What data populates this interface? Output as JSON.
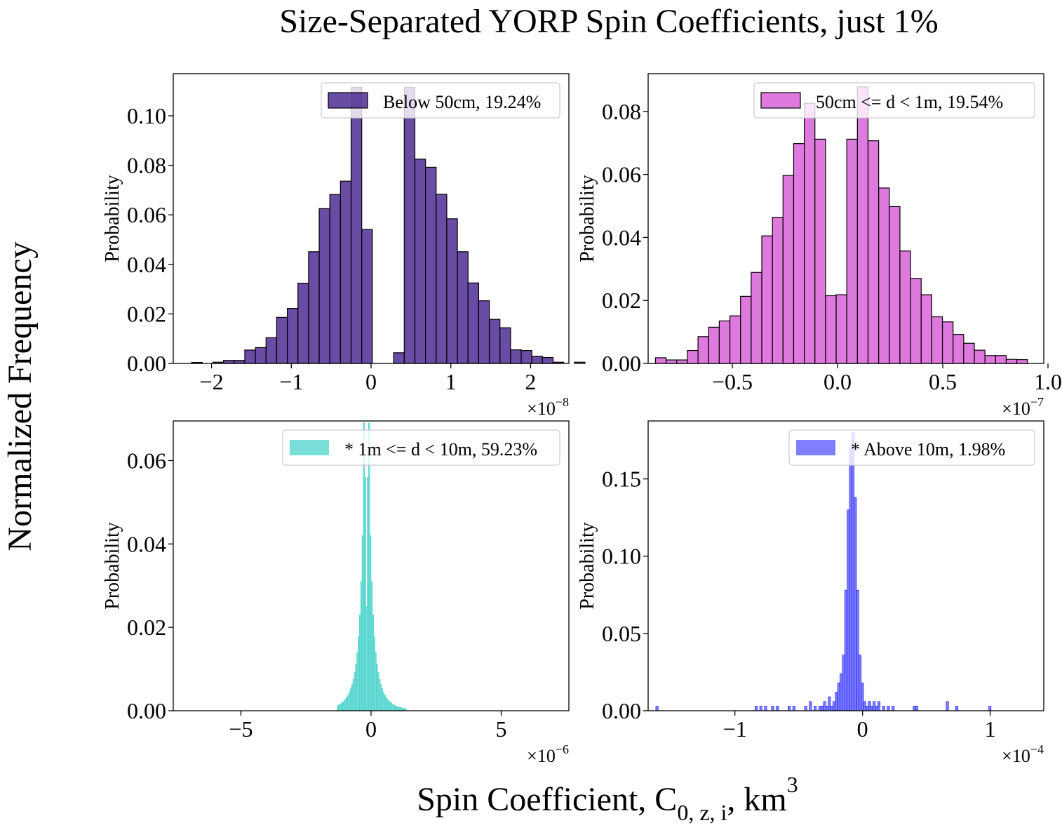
{
  "figure": {
    "title": "Size-Separated YORP Spin Coefficients, just 1%",
    "supylabel": "Normalized Frequency",
    "supxlabel_main": "Spin Coefficient, C",
    "supxlabel_sub": "0, z, i",
    "supxlabel_tail": ", km",
    "supxlabel_sup": "3"
  },
  "chart_data": [
    {
      "type": "bar",
      "legend": "Below 50cm, 19.24%",
      "ylabel": "Probability",
      "color": "#3f1a8a",
      "alpha": 0.78,
      "edge": true,
      "xlim": [
        -2.48,
        2.48
      ],
      "ylim": [
        0,
        0.117
      ],
      "xticks": [
        -2,
        -1,
        0,
        1,
        2
      ],
      "xticklabels": [
        "−2",
        "−1",
        "0",
        "1",
        "2"
      ],
      "yticks": [
        0,
        0.02,
        0.04,
        0.06,
        0.08,
        0.1
      ],
      "yticklabels": [
        "0.00",
        "0.02",
        "0.04",
        "0.06",
        "0.08",
        "0.10"
      ],
      "offset_base": "×10",
      "offset_exp": "−8",
      "bin_start": -2.25,
      "bin_width": 0.1333,
      "values": [
        0.0004,
        0.0,
        0.0005,
        0.0012,
        0.0012,
        0.0054,
        0.0064,
        0.0104,
        0.0186,
        0.0222,
        0.0324,
        0.0451,
        0.0625,
        0.0682,
        0.0736,
        0.1115,
        0.0541,
        0.0,
        0.0,
        0.0043,
        0.1115,
        0.0825,
        0.0792,
        0.0683,
        0.0584,
        0.0451,
        0.0325,
        0.0253,
        0.0178,
        0.0144,
        0.0055,
        0.0052,
        0.0029,
        0.0024,
        0.0005,
        0.0,
        0.0005
      ]
    },
    {
      "type": "bar",
      "legend": "50cm <= d < 1m, 19.54%",
      "ylabel": "Probability",
      "color": "#d555d5",
      "alpha": 0.78,
      "edge": true,
      "xlim": [
        -0.9,
        0.98
      ],
      "ylim": [
        0,
        0.092
      ],
      "xticks": [
        -0.5,
        0.0,
        0.5,
        1.0
      ],
      "xticklabels": [
        "−0.5",
        "0.0",
        "0.5",
        "1.0"
      ],
      "yticks": [
        0,
        0.02,
        0.04,
        0.06,
        0.08
      ],
      "yticklabels": [
        "0.00",
        "0.02",
        "0.04",
        "0.06",
        "0.08"
      ],
      "offset_base": "×10",
      "offset_exp": "−7",
      "bin_start": -0.865,
      "bin_width": 0.0505,
      "values": [
        0.0018,
        0.0011,
        0.0011,
        0.0041,
        0.0085,
        0.0115,
        0.0135,
        0.0151,
        0.0213,
        0.0289,
        0.0405,
        0.0464,
        0.0597,
        0.0698,
        0.0826,
        0.0712,
        0.0215,
        0.0218,
        0.0712,
        0.0878,
        0.0707,
        0.0557,
        0.0498,
        0.0357,
        0.027,
        0.0218,
        0.0148,
        0.0132,
        0.0092,
        0.0064,
        0.0042,
        0.0025,
        0.0025,
        0.0013,
        0.0012
      ]
    },
    {
      "type": "bar",
      "legend": "* 1m <= d < 10m, 59.23%",
      "ylabel": "Probability",
      "color": "#40d0c8",
      "alpha": 0.7,
      "edge": false,
      "xlim": [
        -7.6,
        7.6
      ],
      "ylim": [
        0,
        0.0695
      ],
      "xticks": [
        -5,
        0,
        5
      ],
      "xticklabels": [
        "−5",
        "0",
        "5"
      ],
      "yticks": [
        0,
        0.02,
        0.04,
        0.06
      ],
      "yticklabels": [
        "0.00",
        "0.02",
        "0.04",
        "0.06"
      ],
      "offset_base": "×10",
      "offset_exp": "−6",
      "bin_start": -1.3,
      "bin_width": 0.05,
      "values": [
        0.0012,
        0.0014,
        0.0016,
        0.0019,
        0.0021,
        0.0024,
        0.0028,
        0.0033,
        0.0038,
        0.0045,
        0.0053,
        0.0063,
        0.0075,
        0.0092,
        0.0112,
        0.014,
        0.0178,
        0.023,
        0.031,
        0.042,
        0.069,
        0.056,
        0.025,
        0.056,
        0.069,
        0.042,
        0.031,
        0.023,
        0.0178,
        0.014,
        0.0112,
        0.0092,
        0.0075,
        0.0063,
        0.0053,
        0.0045,
        0.0038,
        0.0033,
        0.0028,
        0.0024,
        0.0021,
        0.0019,
        0.0016,
        0.0014,
        0.0012,
        0.0011,
        0.001,
        0.0009,
        0.0008,
        0.0007,
        0.0006,
        0.0006,
        0.0005
      ]
    },
    {
      "type": "bar",
      "legend": "* Above 10m, 1.98%",
      "ylabel": "Probability",
      "color": "#0000ff",
      "alpha": 0.5,
      "edge": false,
      "xlim": [
        -1.68,
        1.42
      ],
      "ylim": [
        0,
        0.1875
      ],
      "xticks": [
        -1,
        0,
        1
      ],
      "xticklabels": [
        "−1",
        "0",
        "1"
      ],
      "yticks": [
        0,
        0.05,
        0.1,
        0.15
      ],
      "yticklabels": [
        "0.00",
        "0.05",
        "0.10",
        "0.15"
      ],
      "offset_base": "×10",
      "offset_exp": "−4",
      "bin_start": -1.62,
      "bin_width": 0.0185,
      "values": [
        0.003,
        0,
        0,
        0,
        0,
        0,
        0,
        0,
        0,
        0,
        0,
        0,
        0,
        0,
        0,
        0,
        0,
        0,
        0,
        0,
        0,
        0,
        0,
        0,
        0,
        0,
        0,
        0,
        0,
        0,
        0,
        0,
        0,
        0,
        0,
        0,
        0,
        0,
        0,
        0,
        0,
        0,
        0.003,
        0,
        0.003,
        0,
        0.003,
        0,
        0,
        0.003,
        0,
        0.003,
        0,
        0,
        0,
        0,
        0.003,
        0,
        0.003,
        0,
        0,
        0,
        0,
        0.003,
        0,
        0.006,
        0,
        0.003,
        0,
        0.003,
        0.003,
        0.006,
        0.003,
        0.009,
        0.003,
        0.006,
        0.012,
        0.018,
        0.024,
        0.036,
        0.078,
        0.13,
        0.17,
        0.18,
        0.138,
        0.078,
        0.036,
        0.018,
        0.006,
        0.003,
        0.006,
        0.003,
        0.006,
        0.003,
        0.006,
        0,
        0.003,
        0,
        0.003,
        0,
        0.003,
        0,
        0,
        0,
        0,
        0,
        0,
        0,
        0,
        0.003,
        0.003,
        0,
        0,
        0,
        0,
        0,
        0,
        0,
        0,
        0,
        0,
        0,
        0,
        0.006,
        0,
        0,
        0,
        0.003,
        0,
        0,
        0,
        0,
        0,
        0,
        0,
        0,
        0,
        0,
        0,
        0,
        0,
        0.003
      ]
    }
  ]
}
